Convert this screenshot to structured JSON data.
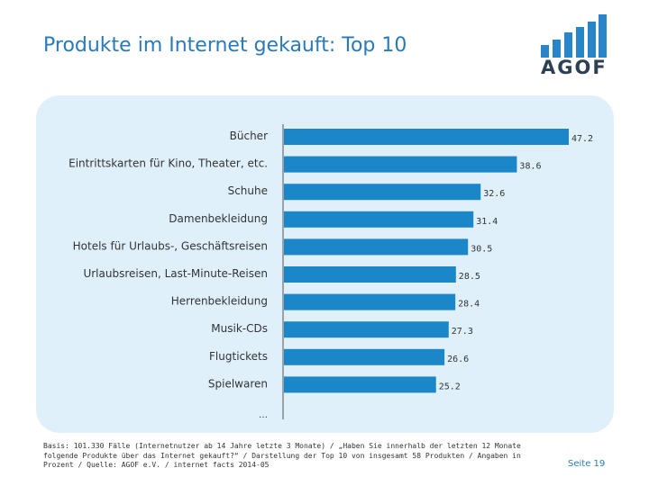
{
  "header": {
    "title": "Produkte im Internet gekauft: Top 10"
  },
  "logo": {
    "text": "AGOF",
    "bar_color": "#2a85c8",
    "text_color": "#2b3f55"
  },
  "colors": {
    "bar": "#1b86c8",
    "panel": "#dff0fb",
    "title": "#2a7ab8"
  },
  "chart_data": {
    "type": "bar",
    "orientation": "horizontal",
    "categories": [
      "Bücher",
      "Eintrittskarten für Kino, Theater, etc.",
      "Schuhe",
      "Damenbekleidung",
      "Hotels für Urlaubs-, Geschäftsreisen",
      "Urlaubsreisen, Last-Minute-Reisen",
      "Herrenbekleidung",
      "Musik-CDs",
      "Flugtickets",
      "Spielwaren"
    ],
    "values": [
      47.2,
      38.6,
      32.6,
      31.4,
      30.5,
      28.5,
      28.4,
      27.3,
      26.6,
      25.2
    ],
    "value_labels": [
      "47.2",
      "38.6",
      "32.6",
      "31.4",
      "30.5",
      "28.5",
      "28.4",
      "27.3",
      "26.6",
      "25.2"
    ],
    "xlim": [
      0,
      47.2
    ],
    "title": "",
    "xlabel": "",
    "ylabel": "",
    "continuation": "…"
  },
  "footer": {
    "note": "Basis: 101.330 Fälle (Internetnutzer ab 14 Jahre letzte 3 Monate) / „Haben Sie innerhalb der letzten 12 Monate folgende Produkte über das Internet gekauft?“ / Darstellung der Top 10 von insgesamt 58 Produkten / Angaben in Prozent / Quelle: AGOF e.V. / internet facts 2014-05",
    "page": "Seite 19"
  }
}
